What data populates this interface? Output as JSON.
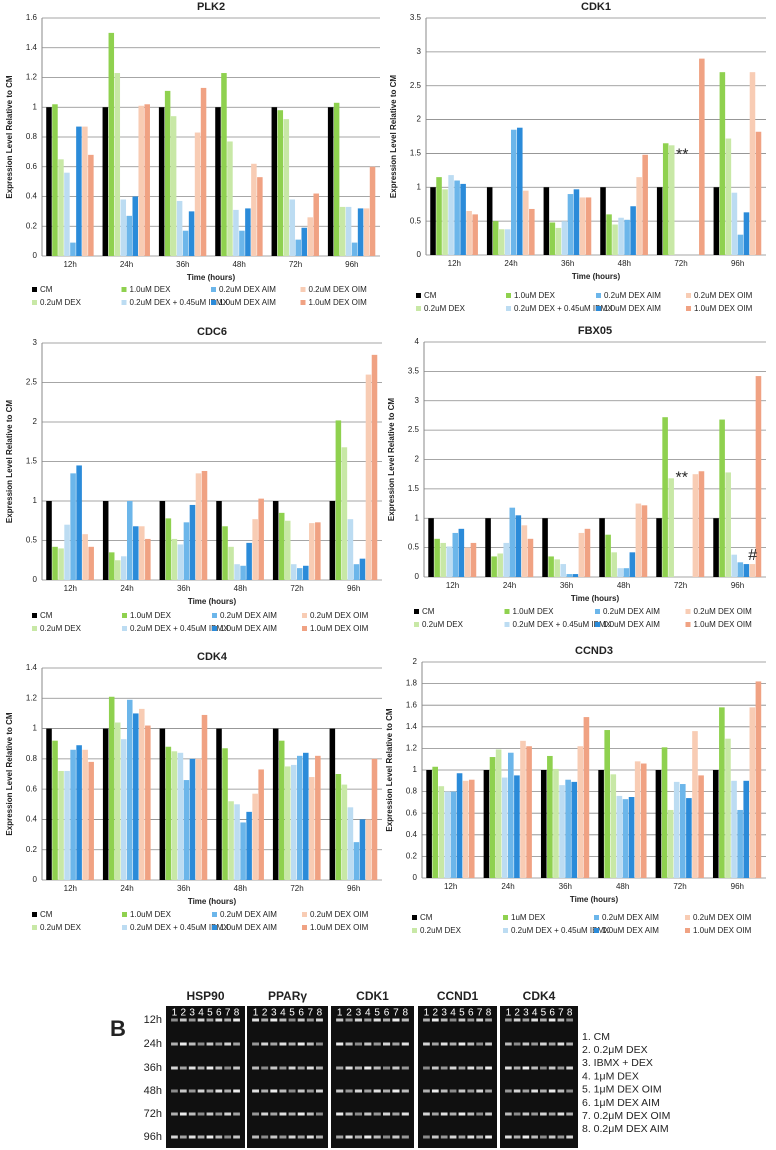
{
  "chart_data": [
    {
      "type": "bar",
      "title": "PLK2",
      "x_label": "Time (hours)",
      "y_label": "Expression Level Relative to CM",
      "categories": [
        "12h",
        "24h",
        "36h",
        "48h",
        "72h",
        "96h"
      ],
      "ylim": [
        0,
        1.6
      ],
      "yticks": [
        0,
        0.2,
        0.4,
        0.6,
        0.8,
        1,
        1.2,
        1.4,
        1.6
      ],
      "grid": true,
      "annotations": [],
      "series": [
        {
          "name": "CM",
          "color": "#000000",
          "values": [
            1,
            1,
            1,
            1,
            1,
            1
          ]
        },
        {
          "name": "1.0uM DEX",
          "color": "#8fd14f",
          "values": [
            1.02,
            1.5,
            1.11,
            1.23,
            0.98,
            1.03
          ]
        },
        {
          "name": "0.2uM DEX",
          "color": "#c8e8a6",
          "values": [
            0.65,
            1.23,
            0.94,
            0.77,
            0.92,
            0.33
          ]
        },
        {
          "name": "0.2uM DEX + 0.45uM IBMX",
          "color": "#bcdcf2",
          "values": [
            0.56,
            0.38,
            0.37,
            0.31,
            0.38,
            0.33
          ]
        },
        {
          "name": "0.2uM DEX AIM",
          "color": "#6cb6ea",
          "values": [
            0.09,
            0.27,
            0.17,
            0.17,
            0.11,
            0.09
          ]
        },
        {
          "name": "1.0uM DEX AIM",
          "color": "#2b8bd9",
          "values": [
            0.87,
            0.4,
            0.3,
            0.32,
            0.19,
            0.32
          ]
        },
        {
          "name": "0.2uM DEX OIM",
          "color": "#f8ccb4",
          "values": [
            0.87,
            1.01,
            0.83,
            0.62,
            0.26,
            0.32
          ]
        },
        {
          "name": "1.0uM DEX OIM",
          "color": "#f0a283",
          "values": [
            0.68,
            1.02,
            1.13,
            0.53,
            0.42,
            0.6
          ]
        }
      ]
    },
    {
      "type": "bar",
      "title": "CDK1",
      "x_label": "Time (hours)",
      "y_label": "Expression Level Relative  to CM",
      "categories": [
        "12h",
        "24h",
        "36h",
        "48h",
        "72h",
        "96h"
      ],
      "ylim": [
        0,
        3.5
      ],
      "yticks": [
        0,
        0.5,
        1,
        1.5,
        2,
        2.5,
        3,
        3.5
      ],
      "grid": true,
      "annotations": [
        "**"
      ],
      "series": [
        {
          "name": "CM",
          "color": "#000000",
          "values": [
            1,
            1,
            1,
            1,
            1,
            1
          ]
        },
        {
          "name": "1.0uM DEX",
          "color": "#8fd14f",
          "values": [
            1.15,
            0.5,
            0.48,
            0.6,
            1.65,
            2.7
          ]
        },
        {
          "name": "0.2uM DEX",
          "color": "#c8e8a6",
          "values": [
            0.97,
            0.38,
            0.4,
            0.45,
            1.62,
            1.72
          ]
        },
        {
          "name": "0.2uM DEX + 0.45uM IBMX",
          "color": "#bcdcf2",
          "values": [
            1.18,
            0.38,
            0.5,
            0.55,
            null,
            0.92
          ]
        },
        {
          "name": "0.2uM DEX AIM",
          "color": "#6cb6ea",
          "values": [
            1.1,
            1.85,
            0.9,
            0.52,
            null,
            0.3
          ]
        },
        {
          "name": "1.0uM DEX AIM",
          "color": "#2b8bd9",
          "values": [
            1.05,
            1.88,
            0.97,
            0.72,
            null,
            0.63
          ]
        },
        {
          "name": "0.2uM DEX OIM",
          "color": "#f8ccb4",
          "values": [
            0.65,
            0.95,
            0.85,
            1.15,
            null,
            2.7
          ]
        },
        {
          "name": "1.0uM DEX OIM",
          "color": "#f0a283",
          "values": [
            0.6,
            0.68,
            0.85,
            1.48,
            2.9,
            1.82
          ]
        }
      ]
    },
    {
      "type": "bar",
      "title": "CDC6",
      "x_label": "Time (hours)",
      "y_label": "Expression Level Relative  to CM",
      "categories": [
        "12h",
        "24h",
        "36h",
        "48h",
        "72h",
        "96h"
      ],
      "ylim": [
        0,
        3
      ],
      "yticks": [
        0,
        0.5,
        1,
        1.5,
        2,
        2.5,
        3
      ],
      "grid": true,
      "annotations": [],
      "series": [
        {
          "name": "CM",
          "color": "#000000",
          "values": [
            1,
            1,
            1,
            1,
            1,
            1
          ]
        },
        {
          "name": "1.0uM DEX",
          "color": "#8fd14f",
          "values": [
            0.42,
            0.35,
            0.78,
            0.68,
            0.85,
            2.02
          ]
        },
        {
          "name": "0.2uM DEX",
          "color": "#c8e8a6",
          "values": [
            0.4,
            0.25,
            0.52,
            0.42,
            0.75,
            1.68
          ]
        },
        {
          "name": "0.2uM DEX + 0.45uM IBMX",
          "color": "#bcdcf2",
          "values": [
            0.7,
            0.3,
            0.45,
            0.2,
            0.2,
            0.77
          ]
        },
        {
          "name": "0.2uM DEX AIM",
          "color": "#6cb6ea",
          "values": [
            1.35,
            1,
            0.73,
            0.18,
            0.15,
            0.2
          ]
        },
        {
          "name": "1.0uM DEX AIM",
          "color": "#2b8bd9",
          "values": [
            1.45,
            0.68,
            0.95,
            0.47,
            0.18,
            0.27
          ]
        },
        {
          "name": "0.2uM DEX OIM",
          "color": "#f8ccb4",
          "values": [
            0.58,
            0.68,
            1.35,
            0.77,
            0.72,
            2.6
          ]
        },
        {
          "name": "1.0uM DEX OIM",
          "color": "#f0a283",
          "values": [
            0.42,
            0.52,
            1.38,
            1.03,
            0.73,
            2.85
          ]
        }
      ]
    },
    {
      "type": "bar",
      "title": "FBX05",
      "x_label": "Time (hours)",
      "y_label": "Expression Level Relative to CM",
      "categories": [
        "12h",
        "24h",
        "36h",
        "48h",
        "72h",
        "96h"
      ],
      "ylim": [
        0,
        4
      ],
      "yticks": [
        0,
        0.5,
        1,
        1.5,
        2,
        2.5,
        3,
        3.5,
        4
      ],
      "grid": true,
      "annotations": [
        "**",
        "#"
      ],
      "series": [
        {
          "name": "CM",
          "color": "#000000",
          "values": [
            1,
            1,
            1,
            1,
            1,
            1
          ]
        },
        {
          "name": "1.0uM DEX",
          "color": "#8fd14f",
          "values": [
            0.65,
            0.35,
            0.35,
            0.72,
            2.72,
            2.68
          ]
        },
        {
          "name": "0.2uM DEX",
          "color": "#c8e8a6",
          "values": [
            0.58,
            0.4,
            0.3,
            0.42,
            1.68,
            1.78
          ]
        },
        {
          "name": "0.2uM DEX + 0.45uM IBMX",
          "color": "#bcdcf2",
          "values": [
            0.52,
            0.58,
            0.22,
            0.15,
            null,
            0.38
          ]
        },
        {
          "name": "0.2uM DEX AIM",
          "color": "#6cb6ea",
          "values": [
            0.75,
            1.18,
            0.05,
            0.15,
            null,
            0.25
          ]
        },
        {
          "name": "1.0uM DEX AIM",
          "color": "#2b8bd9",
          "values": [
            0.82,
            1.05,
            0.05,
            0.42,
            null,
            0.22
          ]
        },
        {
          "name": "0.2uM DEX OIM",
          "color": "#f8ccb4",
          "values": [
            0.5,
            0.88,
            0.75,
            1.25,
            1.75,
            0.22
          ]
        },
        {
          "name": "1.0uM DEX OIM",
          "color": "#f0a283",
          "values": [
            0.58,
            0.65,
            0.82,
            1.22,
            1.8,
            3.42
          ]
        }
      ]
    },
    {
      "type": "bar",
      "title": "CDK4",
      "x_label": "Time (hours)",
      "y_label": "Expression Level Relative to CM",
      "categories": [
        "12h",
        "24h",
        "36h",
        "48h",
        "72h",
        "96h"
      ],
      "ylim": [
        0,
        1.4
      ],
      "yticks": [
        0,
        0.2,
        0.4,
        0.6,
        0.8,
        1,
        1.2,
        1.4
      ],
      "grid": true,
      "annotations": [],
      "series": [
        {
          "name": "CM",
          "color": "#000000",
          "values": [
            1,
            1,
            1,
            1,
            1,
            1
          ]
        },
        {
          "name": "1.0uM DEX",
          "color": "#8fd14f",
          "values": [
            0.92,
            1.21,
            0.88,
            0.87,
            0.92,
            0.7
          ]
        },
        {
          "name": "0.2uM DEX",
          "color": "#c8e8a6",
          "values": [
            0.72,
            1.04,
            0.85,
            0.52,
            0.75,
            0.63
          ]
        },
        {
          "name": "0.2uM DEX + 0.45uM IBMX",
          "color": "#bcdcf2",
          "values": [
            0.72,
            0.93,
            0.84,
            0.5,
            0.76,
            0.48
          ]
        },
        {
          "name": "0.2uM DEX AIM",
          "color": "#6cb6ea",
          "values": [
            0.86,
            1.19,
            0.66,
            0.38,
            0.82,
            0.25
          ]
        },
        {
          "name": "1.0uM DEX AIM",
          "color": "#2b8bd9",
          "values": [
            0.89,
            1.1,
            0.8,
            0.45,
            0.84,
            0.4
          ]
        },
        {
          "name": "0.2uM DEX OIM",
          "color": "#f8ccb4",
          "values": [
            0.86,
            1.13,
            0.8,
            0.57,
            0.68,
            0.4
          ]
        },
        {
          "name": "1.0uM DEX OIM",
          "color": "#f0a283",
          "values": [
            0.78,
            1.02,
            1.09,
            0.73,
            0.82,
            0.8
          ]
        }
      ]
    },
    {
      "type": "bar",
      "title": "CCND3",
      "x_label": "Time (hours)",
      "y_label": "Expression Level Relative to CM",
      "categories": [
        "12h",
        "24h",
        "36h",
        "48h",
        "72h",
        "96h"
      ],
      "ylim": [
        0,
        2
      ],
      "yticks": [
        0,
        0.2,
        0.4,
        0.6,
        0.8,
        1,
        1.2,
        1.4,
        1.6,
        1.8,
        2
      ],
      "grid": true,
      "annotations": [],
      "series": [
        {
          "name": "CM",
          "color": "#000000",
          "values": [
            1,
            1,
            1,
            1,
            1,
            1
          ]
        },
        {
          "name": "1uM DEX",
          "color": "#8fd14f",
          "values": [
            1.03,
            1.12,
            1.13,
            1.37,
            1.21,
            1.58
          ]
        },
        {
          "name": "0.2uM DEX",
          "color": "#c8e8a6",
          "values": [
            0.85,
            1.19,
            1.01,
            0.96,
            0.63,
            1.29
          ]
        },
        {
          "name": "0.2uM DEX + 0.45uM IBMX",
          "color": "#bcdcf2",
          "values": [
            0.8,
            0.93,
            0.86,
            0.76,
            0.89,
            0.9
          ]
        },
        {
          "name": "0.2uM DEX AIM",
          "color": "#6cb6ea",
          "values": [
            0.8,
            1.16,
            0.91,
            0.73,
            0.87,
            0.63
          ]
        },
        {
          "name": "1.0uM DEX AIM",
          "color": "#2b8bd9",
          "values": [
            0.97,
            0.95,
            0.89,
            0.75,
            0.74,
            0.9
          ]
        },
        {
          "name": "0.2uM DEX OIM",
          "color": "#f8ccb4",
          "values": [
            0.9,
            1.27,
            1.22,
            1.08,
            1.36,
            1.58
          ]
        },
        {
          "name": "1.0uM DEX OIM",
          "color": "#f0a283",
          "values": [
            0.91,
            1.22,
            1.49,
            1.06,
            0.95,
            1.82
          ]
        }
      ]
    }
  ],
  "gel": {
    "panel_label": "B",
    "genes": [
      "HSP90",
      "PPARγ",
      "CDK1",
      "CCND1",
      "CDK4"
    ],
    "rows": [
      "12h",
      "24h",
      "36h",
      "48h",
      "72h",
      "96h"
    ],
    "lanes": [
      1,
      2,
      3,
      4,
      5,
      6,
      7,
      8
    ],
    "legend": [
      "1. CM",
      "2. 0.2μM DEX",
      "3. IBMX + DEX",
      "4. 1μM DEX",
      "5. 1μM DEX OIM",
      "6. 1μM DEX AIM",
      "7. 0.2μM DEX OIM",
      "8. 0.2μM DEX AIM"
    ]
  }
}
